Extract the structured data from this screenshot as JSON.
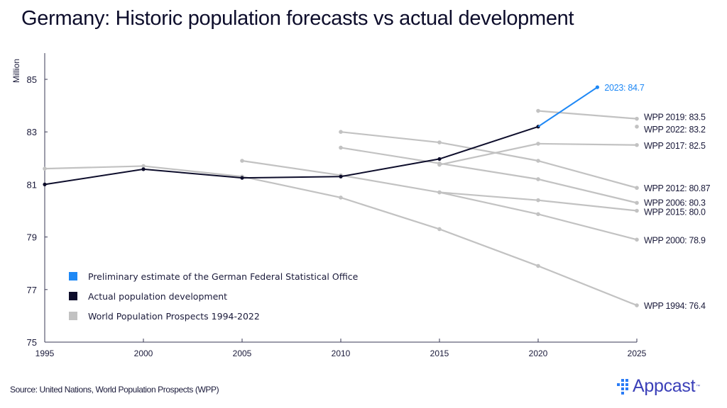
{
  "title": "Germany: Historic population forecasts vs actual development",
  "source": "Source: United Nations, World Population Prospects (WPP)",
  "logo": {
    "text": "Appcast",
    "tm": "™",
    "icon": "appcast-dots-icon"
  },
  "colors": {
    "actual": "#0d0d2b",
    "preliminary": "#1e88f5",
    "forecast": "#c2c2c2",
    "axis": "#3a3a55",
    "label_text": "#1a1a3a",
    "logo": "#3a3fb8"
  },
  "chart_data": {
    "type": "line",
    "title": "Germany: Historic population forecasts vs actual development",
    "xlabel": "",
    "ylabel": "Million",
    "xlim": [
      1995,
      2025
    ],
    "ylim": [
      75,
      85
    ],
    "xticks": [
      1995,
      2000,
      2005,
      2010,
      2015,
      2020,
      2025
    ],
    "yticks": [
      75,
      77,
      79,
      81,
      83,
      85
    ],
    "grid": false,
    "legend_position": "bottom-left",
    "legend": [
      {
        "label": "Preliminary estimate of the German Federal Statistical Office",
        "series": "preliminary"
      },
      {
        "label": "Actual population development",
        "series": "actual"
      },
      {
        "label": "World Population Prospects 1994-2022",
        "series": "forecast"
      }
    ],
    "series": [
      {
        "name": "WPP1994",
        "kind": "forecast",
        "x": [
          1995,
          2000,
          2005,
          2010,
          2015,
          2020,
          2025
        ],
        "values": [
          81.6,
          81.7,
          81.3,
          80.5,
          79.3,
          77.9,
          76.4
        ],
        "end_label": "WPP 1994: 76.4"
      },
      {
        "name": "WPP2000",
        "kind": "forecast",
        "x": [
          2005,
          2010,
          2015,
          2020,
          2025
        ],
        "values": [
          81.9,
          81.35,
          80.7,
          79.87,
          78.9
        ],
        "end_label": "WPP 2000: 78.9"
      },
      {
        "name": "WPP2006",
        "kind": "forecast",
        "x": [
          2010,
          2015,
          2020,
          2025
        ],
        "values": [
          82.4,
          81.8,
          81.2,
          80.3
        ],
        "end_label": "WPP 2006: 80.3"
      },
      {
        "name": "WPP2012",
        "kind": "forecast",
        "x": [
          2010,
          2015,
          2020,
          2025
        ],
        "values": [
          83.0,
          82.6,
          81.9,
          80.87
        ],
        "end_label": "WPP 2012: 80.87"
      },
      {
        "name": "WPP2015",
        "kind": "forecast",
        "x": [
          2015,
          2020,
          2025
        ],
        "values": [
          80.7,
          80.4,
          80.0
        ],
        "end_label": "WPP 2015: 80.0"
      },
      {
        "name": "WPP2017",
        "kind": "forecast",
        "x": [
          2015,
          2020,
          2025
        ],
        "values": [
          81.75,
          82.55,
          82.5
        ],
        "end_label": "WPP 2017: 82.5"
      },
      {
        "name": "WPP2019",
        "kind": "forecast",
        "x": [
          2020,
          2025
        ],
        "values": [
          83.8,
          83.5
        ],
        "end_label": "WPP 2019: 83.5"
      },
      {
        "name": "WPP2022",
        "kind": "forecast",
        "x": [
          2025
        ],
        "values": [
          83.2
        ],
        "end_label": "WPP 2022: 83.2"
      },
      {
        "name": "Actual",
        "kind": "actual",
        "x": [
          1995,
          2000,
          2005,
          2010,
          2015,
          2020
        ],
        "values": [
          81.0,
          81.58,
          81.25,
          81.3,
          81.97,
          83.2
        ]
      },
      {
        "name": "Preliminary",
        "kind": "preliminary",
        "x": [
          2020,
          2023
        ],
        "values": [
          83.2,
          84.7
        ],
        "end_label": "2023: 84.7"
      }
    ]
  }
}
